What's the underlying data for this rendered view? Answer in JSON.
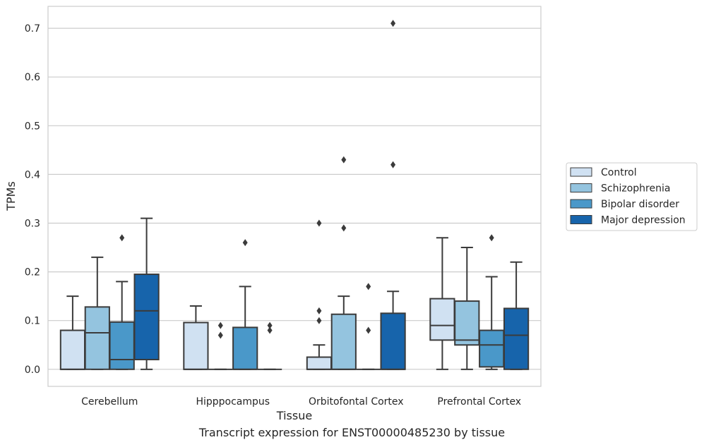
{
  "caption": "Transcript expression for ENST00000485230 by tissue",
  "chart_data": {
    "type": "box",
    "xlabel": "Tissue",
    "ylabel": "TPMs",
    "ylim": [
      -0.035,
      0.745
    ],
    "yticks": [
      "0.0",
      "0.1",
      "0.2",
      "0.3",
      "0.4",
      "0.5",
      "0.6",
      "0.7"
    ],
    "grid": true,
    "legend_position": "right",
    "categories": [
      "Cerebellum",
      "Hipppocampus",
      "Orbitofontal Cortex",
      "Prefrontal Cortex"
    ],
    "series": [
      {
        "name": "Control",
        "color": "#d0e1f2",
        "boxes": [
          {
            "whislo": 0,
            "q1": 0,
            "med": 0,
            "q3": 0.08,
            "whishi": 0.15,
            "fliers": []
          },
          {
            "whislo": 0,
            "q1": 0,
            "med": 0,
            "q3": 0.096,
            "whishi": 0.13,
            "fliers": []
          },
          {
            "whislo": 0,
            "q1": 0,
            "med": 0,
            "q3": 0.025,
            "whishi": 0.05,
            "fliers": [
              0.1,
              0.12,
              0.3
            ]
          },
          {
            "whislo": 0,
            "q1": 0.06,
            "med": 0.09,
            "q3": 0.145,
            "whishi": 0.27,
            "fliers": []
          }
        ]
      },
      {
        "name": "Schizophrenia",
        "color": "#94c4df",
        "boxes": [
          {
            "whislo": 0,
            "q1": 0,
            "med": 0.075,
            "q3": 0.128,
            "whishi": 0.23,
            "fliers": []
          },
          {
            "whislo": 0,
            "q1": 0,
            "med": 0,
            "q3": 0,
            "whishi": 0,
            "fliers": [
              0.07,
              0.09
            ]
          },
          {
            "whislo": 0,
            "q1": 0,
            "med": 0,
            "q3": 0.113,
            "whishi": 0.15,
            "fliers": [
              0.29,
              0.43
            ]
          },
          {
            "whislo": 0,
            "q1": 0.05,
            "med": 0.06,
            "q3": 0.14,
            "whishi": 0.25,
            "fliers": []
          }
        ]
      },
      {
        "name": "Bipolar disorder",
        "color": "#4a98c9",
        "boxes": [
          {
            "whislo": 0,
            "q1": 0,
            "med": 0.02,
            "q3": 0.097,
            "whishi": 0.18,
            "fliers": [
              0.27
            ]
          },
          {
            "whislo": 0,
            "q1": 0,
            "med": 0,
            "q3": 0.086,
            "whishi": 0.17,
            "fliers": [
              0.26
            ]
          },
          {
            "whislo": 0,
            "q1": 0,
            "med": 0,
            "q3": 0,
            "whishi": 0,
            "fliers": [
              0.08,
              0.17
            ]
          },
          {
            "whislo": 0,
            "q1": 0.005,
            "med": 0.05,
            "q3": 0.08,
            "whishi": 0.19,
            "fliers": [
              0.27
            ]
          }
        ]
      },
      {
        "name": "Major depression",
        "color": "#1764ab",
        "boxes": [
          {
            "whislo": 0,
            "q1": 0.02,
            "med": 0.12,
            "q3": 0.195,
            "whishi": 0.31,
            "fliers": []
          },
          {
            "whislo": 0,
            "q1": 0,
            "med": 0,
            "q3": 0,
            "whishi": 0,
            "fliers": [
              0.08,
              0.09
            ]
          },
          {
            "whislo": 0,
            "q1": 0,
            "med": 0,
            "q3": 0.115,
            "whishi": 0.16,
            "fliers": [
              0.42,
              0.71
            ]
          },
          {
            "whislo": 0,
            "q1": 0,
            "med": 0.07,
            "q3": 0.125,
            "whishi": 0.22,
            "fliers": []
          }
        ]
      }
    ]
  }
}
